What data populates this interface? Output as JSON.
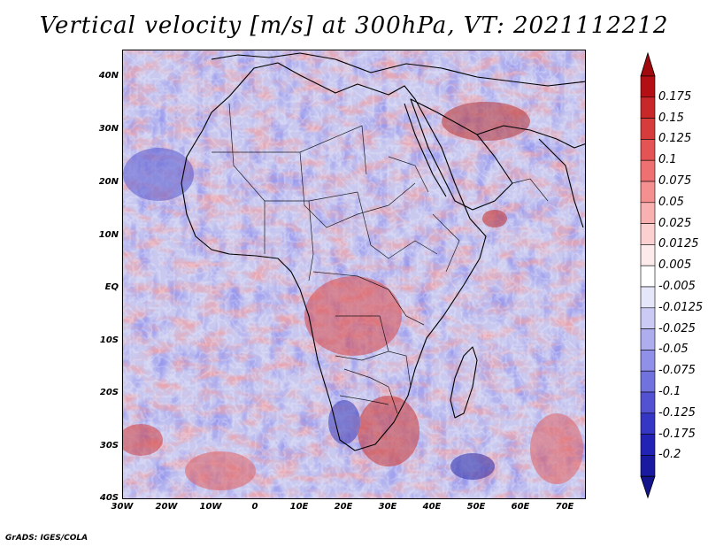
{
  "title": "Vertical velocity [m/s] at 300hPa, VT: 2021112212",
  "credit": "GrADS: IGES/COLA",
  "axes": {
    "lat_labels": [
      "40N",
      "30N",
      "20N",
      "10N",
      "EQ",
      "10S",
      "20S",
      "30S",
      "40S"
    ],
    "lon_labels": [
      "30W",
      "20W",
      "10W",
      "0",
      "10E",
      "20E",
      "30E",
      "40E",
      "50E",
      "60E",
      "70E"
    ]
  },
  "colorbar": {
    "labels": [
      "0.175",
      "0.15",
      "0.125",
      "0.1",
      "0.075",
      "0.05",
      "0.025",
      "0.0125",
      "0.005",
      "-0.005",
      "-0.0125",
      "-0.025",
      "-0.05",
      "-0.075",
      "-0.1",
      "-0.125",
      "-0.175",
      "-0.2"
    ],
    "colors": [
      "#b40f14",
      "#c8282a",
      "#d73c3c",
      "#e45454",
      "#ee7070",
      "#f59090",
      "#f9b0b0",
      "#fcd0d0",
      "#fdeaea",
      "#ffffff",
      "#e6e6fb",
      "#cacaf5",
      "#aeaeef",
      "#9090e8",
      "#7272df",
      "#5252d3",
      "#3636c4",
      "#2222b4",
      "#1a1aa0"
    ],
    "top_color": "#a00a0f",
    "bottom_color": "#14148c"
  }
}
